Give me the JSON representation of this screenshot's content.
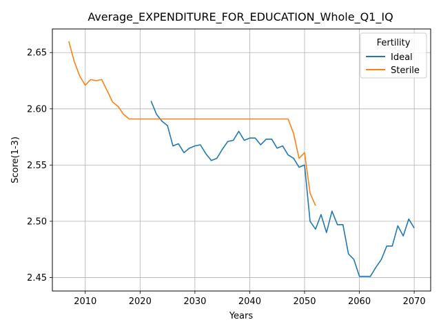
{
  "chart_data": {
    "type": "line",
    "title": "Average_EXPENDITURE_FOR_EDUCATION_Whole_Q1_IQ",
    "xlabel": "Years",
    "ylabel": "Score(1-3)",
    "xlim": [
      2004,
      2073
    ],
    "ylim": [
      2.438,
      2.671
    ],
    "xticks": [
      2010,
      2020,
      2030,
      2040,
      2050,
      2060,
      2070
    ],
    "yticks": [
      2.45,
      2.5,
      2.55,
      2.6,
      2.65
    ],
    "xtick_labels": [
      "2010",
      "2020",
      "2030",
      "2040",
      "2050",
      "2060",
      "2070"
    ],
    "ytick_labels": [
      "2.45",
      "2.50",
      "2.55",
      "2.60",
      "2.65"
    ],
    "grid": true,
    "legend": {
      "title": "Fertility",
      "position": "top-right"
    },
    "series": [
      {
        "name": "Ideal",
        "color": "#1f77b4",
        "x": [
          2022,
          2023,
          2024,
          2025,
          2026,
          2027,
          2028,
          2029,
          2030,
          2031,
          2032,
          2033,
          2034,
          2035,
          2036,
          2037,
          2038,
          2039,
          2040,
          2041,
          2042,
          2043,
          2044,
          2045,
          2046,
          2047,
          2048,
          2049,
          2050,
          2051,
          2052,
          2053,
          2054,
          2055,
          2056,
          2057,
          2058,
          2059,
          2060,
          2061,
          2062,
          2063,
          2064,
          2065,
          2066,
          2067,
          2068,
          2069,
          2070
        ],
        "y": [
          2.607,
          2.595,
          2.589,
          2.585,
          2.567,
          2.569,
          2.561,
          2.565,
          2.567,
          2.568,
          2.56,
          2.554,
          2.556,
          2.564,
          2.571,
          2.572,
          2.58,
          2.572,
          2.574,
          2.574,
          2.568,
          2.573,
          2.573,
          2.565,
          2.567,
          2.559,
          2.556,
          2.548,
          2.55,
          2.5,
          2.493,
          2.506,
          2.49,
          2.509,
          2.497,
          2.497,
          2.471,
          2.466,
          2.451,
          2.451,
          2.451,
          2.459,
          2.466,
          2.478,
          2.478,
          2.496,
          2.487,
          2.502,
          2.494
        ]
      },
      {
        "name": "Sterile",
        "color": "#ff7f0e",
        "x": [
          2007,
          2008,
          2009,
          2010,
          2011,
          2012,
          2013,
          2014,
          2015,
          2016,
          2017,
          2018,
          2019,
          2020,
          2021,
          2022,
          2023,
          2024,
          2025,
          2026,
          2027,
          2028,
          2029,
          2030,
          2031,
          2032,
          2033,
          2034,
          2035,
          2036,
          2037,
          2038,
          2039,
          2040,
          2041,
          2042,
          2043,
          2044,
          2045,
          2046,
          2047,
          2048,
          2049,
          2050,
          2051,
          2052
        ],
        "y": [
          2.66,
          2.642,
          2.629,
          2.621,
          2.626,
          2.625,
          2.626,
          2.616,
          2.606,
          2.602,
          2.595,
          2.591,
          2.591,
          2.591,
          2.591,
          2.591,
          2.591,
          2.591,
          2.591,
          2.591,
          2.591,
          2.591,
          2.591,
          2.591,
          2.591,
          2.591,
          2.591,
          2.591,
          2.591,
          2.591,
          2.591,
          2.591,
          2.591,
          2.591,
          2.591,
          2.591,
          2.591,
          2.591,
          2.591,
          2.591,
          2.591,
          2.578,
          2.556,
          2.561,
          2.525,
          2.514
        ]
      }
    ]
  }
}
